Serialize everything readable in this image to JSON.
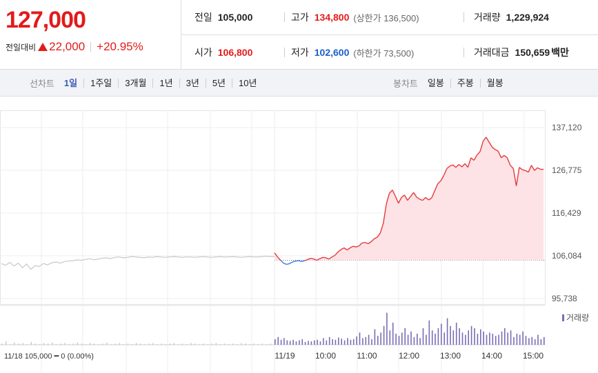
{
  "price": {
    "current": "127,000",
    "change_label": "전일대비",
    "change": "22,000",
    "change_pct": "+20.95%"
  },
  "stats": {
    "prev_close_label": "전일",
    "prev_close": "105,000",
    "high_label": "고가",
    "high": "134,800",
    "upper_limit": "(상한가 136,500)",
    "volume_label": "거래량",
    "volume": "1,229,924",
    "open_label": "시가",
    "open": "106,800",
    "low_label": "저가",
    "low": "102,600",
    "lower_limit": "(하한가 73,500)",
    "value_label": "거래대금",
    "value": "150,659",
    "value_unit": "백만"
  },
  "toolbar": {
    "line_label": "선차트",
    "line_periods": [
      "1일",
      "1주일",
      "3개월",
      "1년",
      "3년",
      "5년",
      "10년"
    ],
    "selected_line_period": "1일",
    "candle_label": "봉차트",
    "candle_periods": [
      "일봉",
      "주봉",
      "월봉"
    ]
  },
  "chart_data": {
    "type": "line",
    "y_ticks": [
      "137,120",
      "126,775",
      "116,429",
      "106,084",
      "95,738"
    ],
    "ylim": [
      95738,
      137120
    ],
    "baseline": 105000,
    "x_ticks": [
      "11/19",
      "10:00",
      "11:00",
      "12:00",
      "13:00",
      "14:00",
      "15:00"
    ],
    "legend": "거래량",
    "footer": "11/18 105,000 ━ 0 (0.00%)",
    "colors": {
      "up": "#e8383d",
      "down": "#3a7bd5",
      "prev": "#c8c8c8",
      "volume": "#7a6bb5",
      "fill": "#fde3e5"
    },
    "prev_day_series": [
      104200,
      103800,
      104500,
      103600,
      104300,
      103200,
      104100,
      102800,
      103700,
      103500,
      104200,
      103900,
      104400,
      104600,
      104300,
      104700,
      104800,
      104900,
      105100,
      105000,
      105200,
      105400,
      105100,
      105300,
      105500,
      105600,
      105400,
      105700,
      105800,
      105600,
      105700,
      105900,
      105800,
      105700,
      105600,
      105800,
      105700,
      105900,
      105800,
      105700,
      105800,
      105900,
      105800,
      105700,
      105800,
      105800,
      105700,
      105800,
      105900,
      105800,
      105700,
      105800,
      105900,
      105800,
      105800,
      105900,
      105800,
      105700,
      105800,
      105900,
      105800,
      105800,
      105900,
      106000,
      105900,
      105900
    ],
    "today_series": [
      106800,
      105800,
      105000,
      104300,
      104000,
      104200,
      104600,
      104800,
      104900,
      104700,
      104900,
      105200,
      105500,
      105300,
      105000,
      105400,
      105700,
      105600,
      105300,
      105800,
      106200,
      107000,
      107600,
      108000,
      107500,
      108000,
      108400,
      108200,
      108500,
      109200,
      109300,
      109000,
      109500,
      110200,
      110600,
      111600,
      114000,
      118600,
      121200,
      122000,
      120500,
      118800,
      120200,
      120800,
      119500,
      120400,
      121400,
      120300,
      119800,
      119500,
      120200,
      119600,
      120100,
      121800,
      123500,
      124200,
      125500,
      127200,
      127800,
      128100,
      127500,
      128200,
      127600,
      128400,
      127500,
      129800,
      129200,
      130500,
      131300,
      133800,
      134800,
      133600,
      132400,
      131800,
      131400,
      129800,
      130400,
      129800,
      128000,
      127200,
      123000,
      127500,
      126900,
      126700,
      126300,
      128000,
      126700,
      127400,
      127000,
      127000
    ],
    "prev_volume": [
      2,
      6,
      1,
      4,
      2,
      3,
      1,
      5,
      2,
      1,
      3,
      2,
      4,
      1,
      2,
      3,
      1,
      2,
      4,
      2,
      1,
      3,
      2,
      1,
      2,
      4,
      1,
      2,
      3,
      1,
      2,
      1,
      3,
      2,
      1,
      2,
      3,
      1,
      2,
      1,
      2,
      3,
      1,
      2,
      1,
      3,
      2,
      1,
      2,
      1,
      2,
      3,
      1,
      2,
      1,
      2,
      1,
      3,
      2,
      1,
      2,
      1,
      2,
      1,
      2,
      3
    ],
    "today_volume": [
      10,
      14,
      9,
      12,
      8,
      7,
      9,
      6,
      8,
      10,
      5,
      7,
      6,
      8,
      9,
      6,
      12,
      8,
      14,
      10,
      9,
      13,
      11,
      8,
      12,
      9,
      10,
      15,
      22,
      12,
      14,
      18,
      10,
      28,
      16,
      22,
      34,
      58,
      26,
      40,
      20,
      16,
      22,
      30,
      18,
      24,
      14,
      20,
      12,
      30,
      18,
      44,
      26,
      20,
      30,
      38,
      22,
      48,
      34,
      26,
      40,
      30,
      22,
      18,
      26,
      34,
      30,
      20,
      28,
      24,
      18,
      22,
      20,
      16,
      18,
      24,
      30,
      22,
      26,
      14,
      20,
      18,
      24,
      16,
      12,
      14,
      10,
      18,
      10,
      14
    ]
  }
}
